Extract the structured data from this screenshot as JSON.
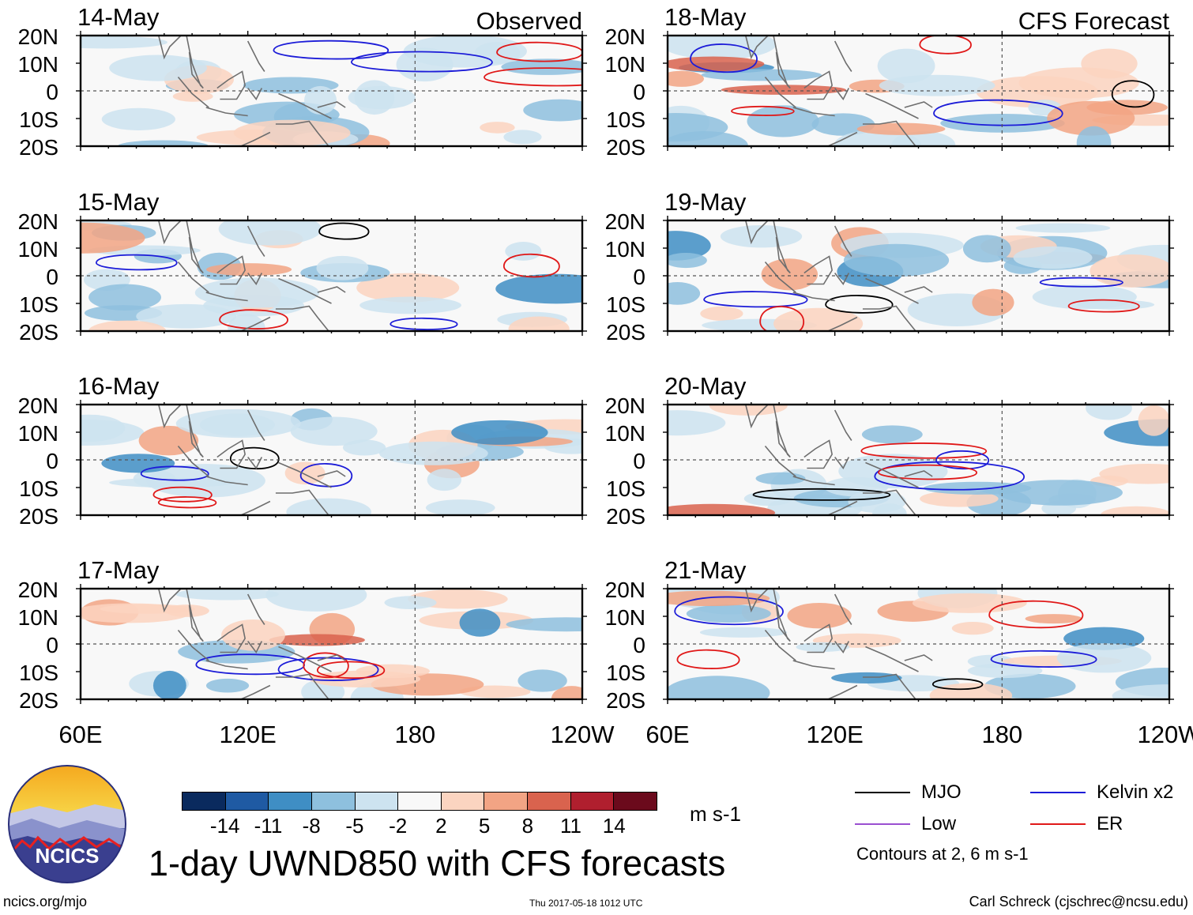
{
  "figure": {
    "main_title": "1-day UWND850 with CFS forecasts",
    "site_url": "ncics.org/mjo",
    "timestamp": "Thu 2017-05-18 1012 UTC",
    "author": "Carl Schreck (cjschrec@ncsu.edu)",
    "logo_text": "NCICS",
    "units": "m s-1",
    "contour_note": "Contours at 2, 6 m s-1"
  },
  "colorbar": {
    "labels": [
      "-14",
      "-11",
      "-8",
      "-5",
      "-2",
      "2",
      "5",
      "8",
      "11",
      "14"
    ],
    "colors": [
      "#0a2a5e",
      "#1f5aa3",
      "#3f8ec4",
      "#8ec0de",
      "#cde3f0",
      "#f8f8f8",
      "#fbd4c0",
      "#f2a484",
      "#d9634e",
      "#b01f2e",
      "#6b0a1c"
    ]
  },
  "legend": [
    {
      "label": "MJO",
      "color": "#000000"
    },
    {
      "label": "Kelvin x2",
      "color": "#1c1cd8"
    },
    {
      "label": "Low",
      "color": "#9a4fd0"
    },
    {
      "label": "ER",
      "color": "#e01818"
    }
  ],
  "chart_data": {
    "type": "heatmap",
    "variable": "UWND850",
    "x_ticks": [
      "60E",
      "120E",
      "180",
      "120W"
    ],
    "y_ticks": [
      "20N",
      "10N",
      "0",
      "10S",
      "20S"
    ],
    "x_range_deg_east": [
      60,
      240
    ],
    "y_range_deg": [
      -20,
      20
    ],
    "panels": [
      {
        "date": "14-May",
        "label": "Observed",
        "column": "observed"
      },
      {
        "date": "15-May",
        "column": "observed"
      },
      {
        "date": "16-May",
        "column": "observed"
      },
      {
        "date": "17-May",
        "column": "observed"
      },
      {
        "date": "18-May",
        "label": "CFS Forecast",
        "column": "forecast"
      },
      {
        "date": "19-May",
        "column": "forecast"
      },
      {
        "date": "20-May",
        "column": "forecast"
      },
      {
        "date": "21-May",
        "column": "forecast"
      }
    ]
  }
}
